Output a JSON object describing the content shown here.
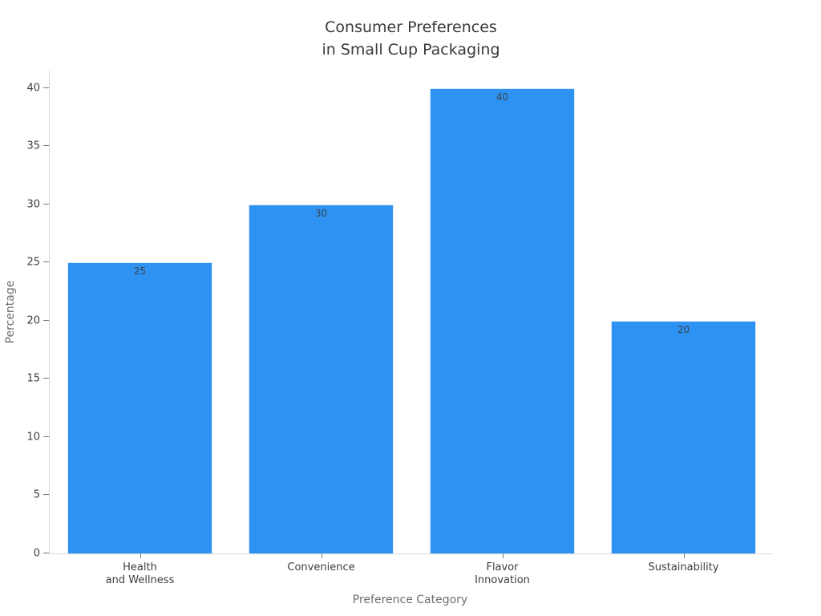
{
  "chart_data": {
    "type": "bar",
    "title": "Consumer Preferences in Small Cup Packaging",
    "title_lines": [
      "Consumer Preferences",
      "in Small Cup Packaging"
    ],
    "xlabel": "Preference Category",
    "ylabel": "Percentage",
    "categories": [
      "Health and Wellness",
      "Convenience",
      "Flavor Innovation",
      "Sustainability"
    ],
    "category_label_lines": [
      [
        "Health",
        "and Wellness"
      ],
      [
        "Convenience"
      ],
      [
        "Flavor",
        "Innovation"
      ],
      [
        "Sustainability"
      ]
    ],
    "values": [
      25,
      30,
      40,
      20
    ],
    "value_labels": [
      "25",
      "30",
      "40",
      "20"
    ],
    "yticks": [
      0,
      5,
      10,
      15,
      20,
      25,
      30,
      35,
      40
    ],
    "ylim": [
      0,
      41.5
    ],
    "grid": false,
    "legend": "none",
    "bar_color": "#2e92f2",
    "bar_border_color": "#d8e9fb",
    "value_label_color": "#3a4550",
    "tick_label_color": "#3d3d3d",
    "axis_label_color": "#6e6e6e",
    "spine_color": "#d9d9d9",
    "background_color": "#ffffff"
  }
}
